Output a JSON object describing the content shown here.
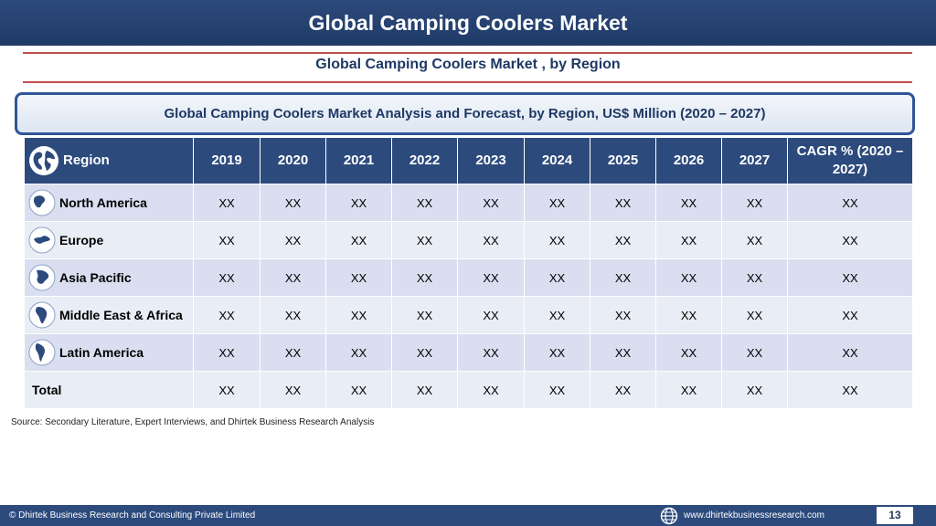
{
  "header": {
    "title": "Global Camping Coolers Market"
  },
  "subtitle": "Global Camping Coolers Market , by Region",
  "analysis_title": "Global Camping Coolers Market  Analysis and Forecast, by Region, US$ Million (2020 – 2027)",
  "table": {
    "columns": [
      "Region",
      "2019",
      "2020",
      "2021",
      "2022",
      "2023",
      "2024",
      "2025",
      "2026",
      "2027",
      "CAGR % (2020 – 2027)"
    ],
    "rows": [
      {
        "region": "North America",
        "icon": "north-america-globe-icon",
        "values": [
          "XX",
          "XX",
          "XX",
          "XX",
          "XX",
          "XX",
          "XX",
          "XX",
          "XX",
          "XX"
        ]
      },
      {
        "region": "Europe",
        "icon": "europe-globe-icon",
        "values": [
          "XX",
          "XX",
          "XX",
          "XX",
          "XX",
          "XX",
          "XX",
          "XX",
          "XX",
          "XX"
        ]
      },
      {
        "region": "Asia Pacific",
        "icon": "asia-pacific-globe-icon",
        "values": [
          "XX",
          "XX",
          "XX",
          "XX",
          "XX",
          "XX",
          "XX",
          "XX",
          "XX",
          "XX"
        ]
      },
      {
        "region": "Middle East & Africa",
        "icon": "africa-globe-icon",
        "values": [
          "XX",
          "XX",
          "XX",
          "XX",
          "XX",
          "XX",
          "XX",
          "XX",
          "XX",
          "XX"
        ]
      },
      {
        "region": "Latin America",
        "icon": "latin-america-globe-icon",
        "values": [
          "XX",
          "XX",
          "XX",
          "XX",
          "XX",
          "XX",
          "XX",
          "XX",
          "XX",
          "XX"
        ]
      },
      {
        "region": "Total",
        "icon": "",
        "values": [
          "XX",
          "XX",
          "XX",
          "XX",
          "XX",
          "XX",
          "XX",
          "XX",
          "XX",
          "XX"
        ]
      }
    ]
  },
  "source": "Source: Secondary Literature, Expert Interviews, and Dhirtek Business Research Analysis",
  "footer": {
    "copyright": "© Dhirtek Business Research and Consulting Private Limited",
    "website": "www.dhirtekbusinessresearch.com",
    "page_number": "13"
  },
  "colors": {
    "primary": "#2c4a7c",
    "accent_line": "#c0504d",
    "row_odd": "#d9dff0",
    "row_even": "#e9edf5"
  }
}
